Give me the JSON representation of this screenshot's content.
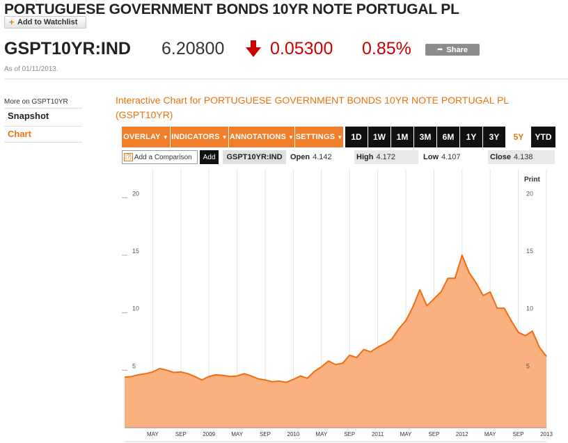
{
  "header": {
    "title": "PORTUGUESE GOVERNMENT BONDS 10YR NOTE PORTUGAL PL",
    "watchlist_label": "Add to Watchlist"
  },
  "quote": {
    "ticker": "GSPT10YR:IND",
    "price": "6.20800",
    "change": "0.05300",
    "change_pct": "0.85%",
    "direction": "down",
    "share_label": "Share",
    "as_of": "As of 01/11/2013."
  },
  "colors": {
    "accent": "#e8730e",
    "negative": "#cc0000",
    "area_fill": "#fbb07f",
    "area_line": "#f26c0d"
  },
  "sidebar": {
    "heading": "More on GSPT10YR",
    "items": [
      {
        "label": "Snapshot",
        "active": false
      },
      {
        "label": "Chart",
        "active": true
      }
    ]
  },
  "chart_panel": {
    "title": "Interactive Chart for PORTUGUESE GOVERNMENT BONDS 10YR NOTE PORTUGAL PL (GSPT10YR)",
    "menus": [
      "OVERLAY",
      "INDICATORS",
      "ANNOTATIONS",
      "SETTINGS"
    ],
    "ranges": [
      "1D",
      "1W",
      "1M",
      "3M",
      "6M",
      "1Y",
      "3Y",
      "5Y",
      "YTD"
    ],
    "active_range": "5Y",
    "comparison_placeholder": "Add a Comparison",
    "help_icon": "[?]",
    "add_label": "Add",
    "compare_ticker": "GSPT10YR:IND",
    "stats": {
      "open_label": "Open",
      "open": "4.142",
      "high_label": "High",
      "high": "4.172",
      "low_label": "Low",
      "low": "4.107",
      "close_label": "Close",
      "close": "4.138"
    },
    "print_label": "Print"
  },
  "chart_data": {
    "type": "area",
    "title": "",
    "xlabel": "",
    "ylabel": "",
    "ylim": [
      0,
      22.5
    ],
    "yticks": [
      5,
      10,
      15,
      20
    ],
    "x_tick_labels": [
      "MAY",
      "SEP",
      "2009",
      "MAY",
      "SEP",
      "2010",
      "MAY",
      "SEP",
      "2011",
      "MAY",
      "SEP",
      "2012",
      "MAY",
      "SEP",
      "2013"
    ],
    "grid": true,
    "series": [
      {
        "name": "",
        "points": [
          [
            "2008-01",
            4.4
          ],
          [
            "2008-02",
            4.45
          ],
          [
            "2008-03",
            4.6
          ],
          [
            "2008-04",
            4.7
          ],
          [
            "2008-05",
            4.85
          ],
          [
            "2008-06",
            5.15
          ],
          [
            "2008-07",
            5.0
          ],
          [
            "2008-08",
            4.8
          ],
          [
            "2008-09",
            4.85
          ],
          [
            "2008-10",
            4.7
          ],
          [
            "2008-11",
            4.45
          ],
          [
            "2008-12",
            4.15
          ],
          [
            "2009-01",
            4.45
          ],
          [
            "2009-02",
            4.6
          ],
          [
            "2009-03",
            4.55
          ],
          [
            "2009-04",
            4.45
          ],
          [
            "2009-05",
            4.5
          ],
          [
            "2009-06",
            4.7
          ],
          [
            "2009-07",
            4.5
          ],
          [
            "2009-08",
            4.25
          ],
          [
            "2009-09",
            4.15
          ],
          [
            "2009-10",
            4.0
          ],
          [
            "2009-11",
            4.05
          ],
          [
            "2009-12",
            3.95
          ],
          [
            "2010-01",
            4.2
          ],
          [
            "2010-02",
            4.5
          ],
          [
            "2010-03",
            4.3
          ],
          [
            "2010-04",
            4.9
          ],
          [
            "2010-05",
            5.3
          ],
          [
            "2010-06",
            5.8
          ],
          [
            "2010-07",
            5.5
          ],
          [
            "2010-08",
            5.6
          ],
          [
            "2010-09",
            6.3
          ],
          [
            "2010-10",
            6.1
          ],
          [
            "2010-11",
            6.8
          ],
          [
            "2010-12",
            6.6
          ],
          [
            "2011-01",
            7.0
          ],
          [
            "2011-02",
            7.3
          ],
          [
            "2011-03",
            7.7
          ],
          [
            "2011-04",
            8.6
          ],
          [
            "2011-05",
            9.3
          ],
          [
            "2011-06",
            10.5
          ],
          [
            "2011-07",
            12.0
          ],
          [
            "2011-08",
            10.6
          ],
          [
            "2011-09",
            11.2
          ],
          [
            "2011-10",
            11.8
          ],
          [
            "2011-11",
            13.0
          ],
          [
            "2011-12",
            13.0
          ],
          [
            "2012-01",
            15.0
          ],
          [
            "2012-02",
            13.5
          ],
          [
            "2012-03",
            12.6
          ],
          [
            "2012-04",
            11.5
          ],
          [
            "2012-05",
            11.8
          ],
          [
            "2012-06",
            10.4
          ],
          [
            "2012-07",
            10.4
          ],
          [
            "2012-08",
            9.3
          ],
          [
            "2012-09",
            8.3
          ],
          [
            "2012-10",
            8.0
          ],
          [
            "2012-11",
            8.4
          ],
          [
            "2012-12",
            7.0
          ],
          [
            "2013-01",
            6.2
          ]
        ]
      }
    ]
  }
}
